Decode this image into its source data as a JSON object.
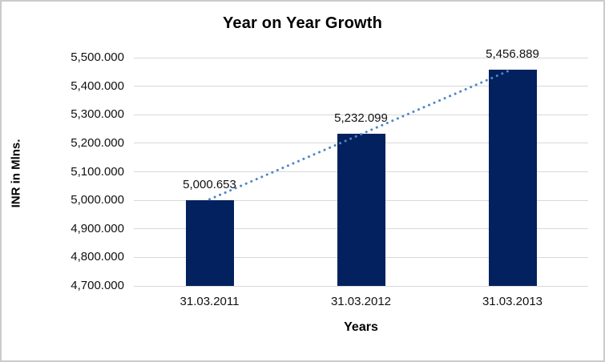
{
  "window": {
    "background_color": "#ffffff",
    "border_color": "#cbcbcb"
  },
  "chart_data": {
    "type": "bar",
    "title": "Year on Year Growth",
    "xlabel": "Years",
    "ylabel": "INR in Mlns.",
    "categories": [
      "31.03.2011",
      "31.03.2012",
      "31.03.2013"
    ],
    "values": [
      5000.653,
      5232.099,
      5456.889
    ],
    "data_labels": [
      "5,000.653",
      "5,232.099",
      "5,456.889"
    ],
    "ylim": [
      4700,
      5500
    ],
    "yticks": [
      {
        "value": 5500,
        "label": "5,500.000"
      },
      {
        "value": 5400,
        "label": "5,400.000"
      },
      {
        "value": 5300,
        "label": "5,300.000"
      },
      {
        "value": 5200,
        "label": "5,200.000"
      },
      {
        "value": 5100,
        "label": "5,100.000"
      },
      {
        "value": 5000,
        "label": "5,000.000"
      },
      {
        "value": 4900,
        "label": "4,900.000"
      },
      {
        "value": 4800,
        "label": "4,800.000"
      },
      {
        "value": 4700,
        "label": "4,700.000"
      }
    ],
    "grid": "horizontal",
    "legend": "none",
    "bar_color": "#02215e",
    "gridline_color": "#d9d9d9",
    "trendline": {
      "type": "linear",
      "style": "dotted",
      "color": "#4f86c8"
    }
  }
}
